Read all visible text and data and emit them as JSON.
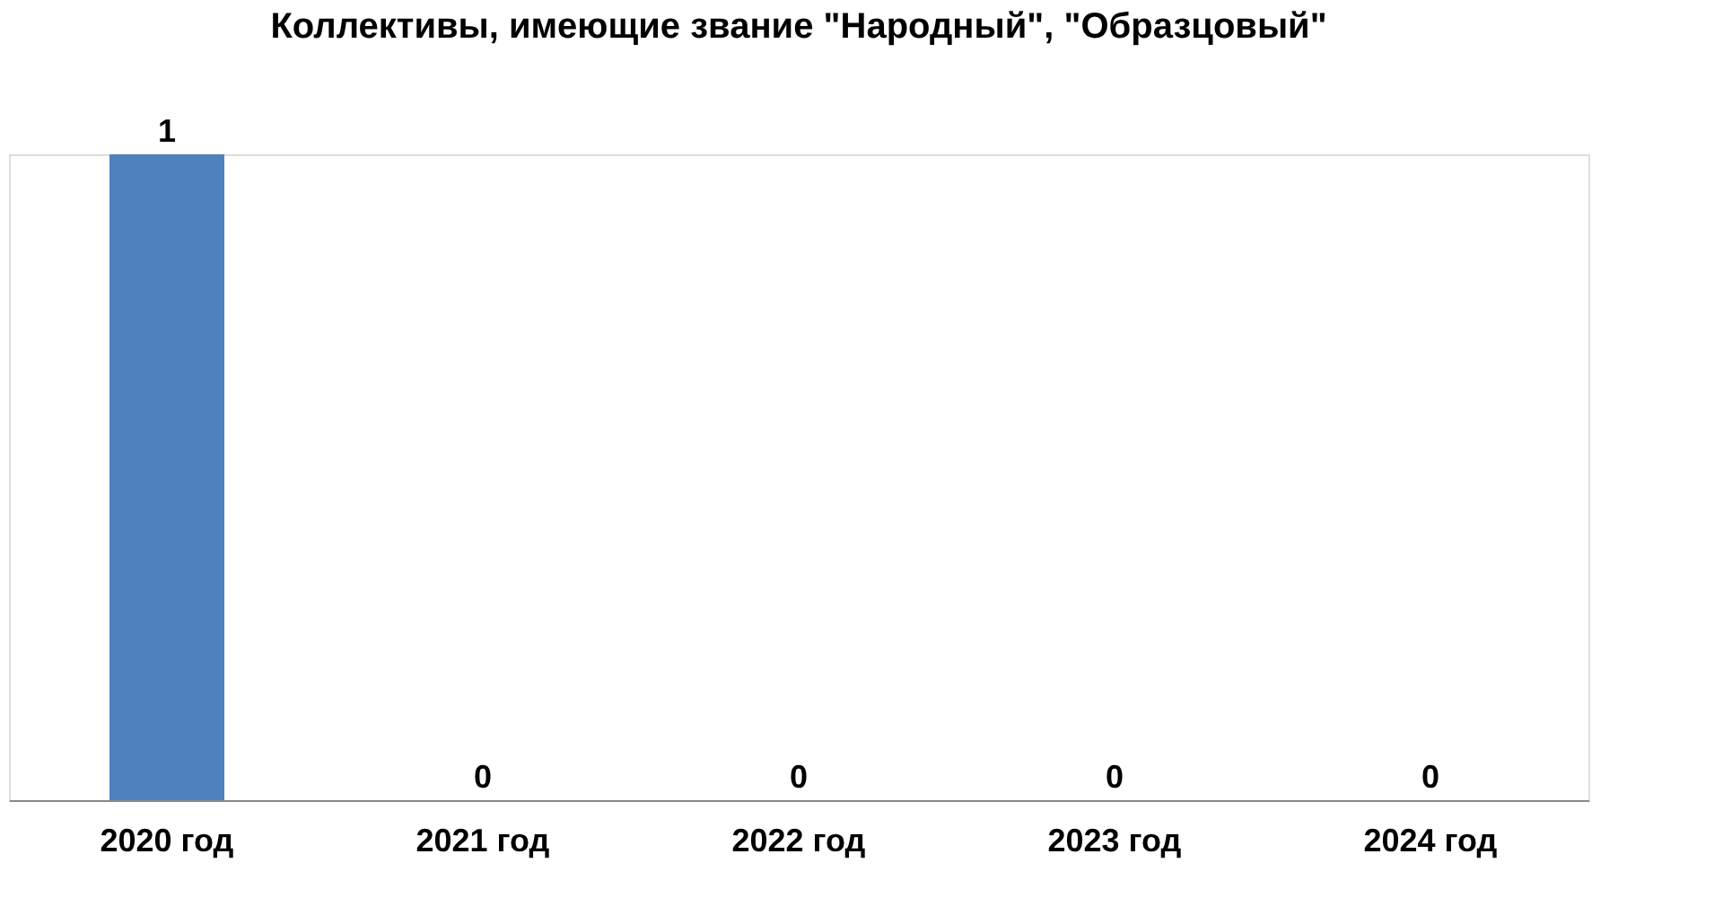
{
  "chart_data": {
    "type": "bar",
    "title": "Коллективы, имеющие звание \"Народный\", \"Образцовый\"",
    "categories": [
      "2020 год",
      "2021 год",
      "2022 год",
      "2023 год",
      "2024 год"
    ],
    "values": [
      1,
      0,
      0,
      0,
      0
    ],
    "color": "#4f81bd",
    "data_labels": true
  }
}
